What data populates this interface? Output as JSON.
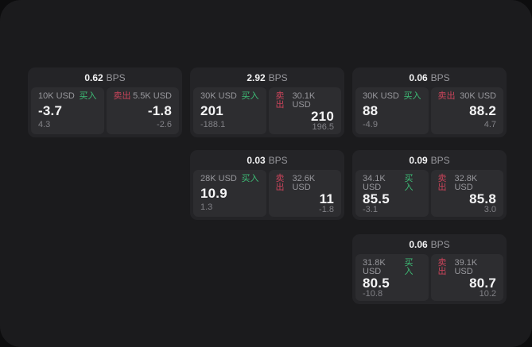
{
  "colors": {
    "buy": "#3dbd76",
    "sell": "#c9445a"
  },
  "labels": {
    "bps_unit": "BPS",
    "buy_side": "买入",
    "sell_side": "卖出"
  },
  "cards": [
    {
      "col": 0,
      "row": 0,
      "bps_value": "0.62",
      "bps_unit": "BPS",
      "buy": {
        "amount": "10K USD",
        "side": "买入",
        "value": "-3.7",
        "delta": "4.3"
      },
      "sell": {
        "side": "卖出",
        "amount": "5.5K USD",
        "value": "-1.8",
        "delta": "-2.6"
      }
    },
    {
      "col": 1,
      "row": 0,
      "bps_value": "2.92",
      "bps_unit": "BPS",
      "buy": {
        "amount": "30K USD",
        "side": "买入",
        "value": "201",
        "delta": "-188.1"
      },
      "sell": {
        "side": "卖出",
        "amount": "30.1K USD",
        "value": "210",
        "delta": "196.5"
      }
    },
    {
      "col": 2,
      "row": 0,
      "bps_value": "0.06",
      "bps_unit": "BPS",
      "buy": {
        "amount": "30K USD",
        "side": "买入",
        "value": "88",
        "delta": "-4.9"
      },
      "sell": {
        "side": "卖出",
        "amount": "30K USD",
        "value": "88.2",
        "delta": "4.7"
      }
    },
    {
      "col": 1,
      "row": 1,
      "bps_value": "0.03",
      "bps_unit": "BPS",
      "buy": {
        "amount": "28K USD",
        "side": "买入",
        "value": "10.9",
        "delta": "1.3"
      },
      "sell": {
        "side": "卖出",
        "amount": "32.6K USD",
        "value": "11",
        "delta": "-1.8"
      }
    },
    {
      "col": 2,
      "row": 1,
      "bps_value": "0.09",
      "bps_unit": "BPS",
      "buy": {
        "amount": "34.1K USD",
        "side": "买入",
        "value": "85.5",
        "delta": "-3.1"
      },
      "sell": {
        "side": "卖出",
        "amount": "32.8K USD",
        "value": "85.8",
        "delta": "3.0"
      }
    },
    {
      "col": 2,
      "row": 2,
      "bps_value": "0.06",
      "bps_unit": "BPS",
      "buy": {
        "amount": "31.8K USD",
        "side": "买入",
        "value": "80.5",
        "delta": "-10.8"
      },
      "sell": {
        "side": "卖出",
        "amount": "39.1K USD",
        "value": "80.7",
        "delta": "10.2"
      }
    }
  ]
}
